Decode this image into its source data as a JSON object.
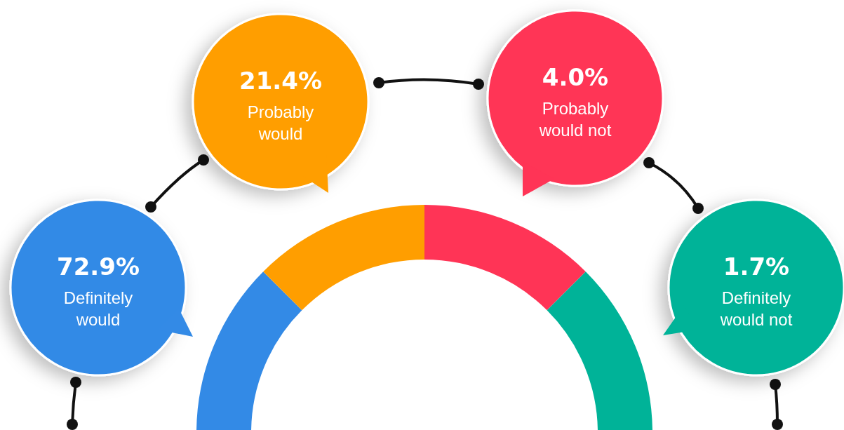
{
  "chart_data": {
    "type": "other",
    "categories": [
      "Definitely would",
      "Probably would",
      "Probably would not",
      "Definitely would not"
    ],
    "values": [
      72.9,
      21.4,
      4.0,
      1.7
    ],
    "value_labels": [
      "72.9%",
      "21.4%",
      "4.0%",
      "1.7%"
    ],
    "colors": [
      "#338ae6",
      "#ff9e00",
      "#ff3456",
      "#00b398"
    ]
  }
}
